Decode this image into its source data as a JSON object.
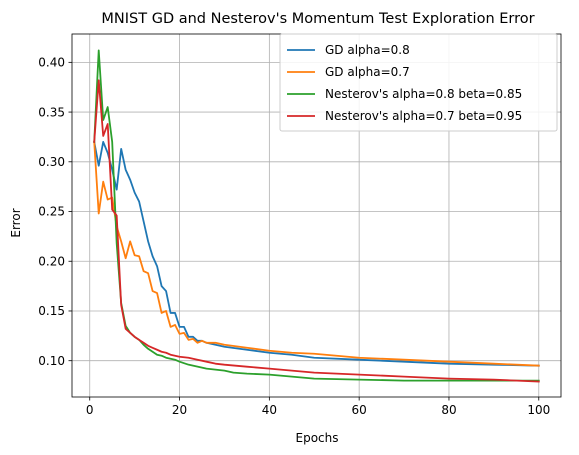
{
  "chart_data": {
    "type": "line",
    "title": "MNIST GD and Nesterov's Momentum Test Exploration Error",
    "xlabel": "Epochs",
    "ylabel": "Error",
    "xlim": [
      -3.95,
      104.95
    ],
    "ylim": [
      0.0635,
      0.4285
    ],
    "xticks": [
      0,
      20,
      40,
      60,
      80,
      100
    ],
    "yticks": [
      0.1,
      0.15,
      0.2,
      0.25,
      0.3,
      0.35,
      0.4
    ],
    "xtick_labels": [
      "0",
      "20",
      "40",
      "60",
      "80",
      "100"
    ],
    "ytick_labels": [
      "0.10",
      "0.15",
      "0.20",
      "0.25",
      "0.30",
      "0.35",
      "0.40"
    ],
    "grid": true,
    "legend_position": "top-right",
    "series": [
      {
        "name": "GD alpha=0.8",
        "color": "#1f77b4",
        "points": [
          [
            1,
            0.32
          ],
          [
            2,
            0.296
          ],
          [
            3,
            0.32
          ],
          [
            4,
            0.309
          ],
          [
            5,
            0.292
          ],
          [
            6,
            0.272
          ],
          [
            7,
            0.313
          ],
          [
            8,
            0.292
          ],
          [
            9,
            0.282
          ],
          [
            10,
            0.269
          ],
          [
            11,
            0.26
          ],
          [
            12,
            0.24
          ],
          [
            13,
            0.22
          ],
          [
            14,
            0.205
          ],
          [
            15,
            0.195
          ],
          [
            16,
            0.175
          ],
          [
            17,
            0.17
          ],
          [
            18,
            0.148
          ],
          [
            19,
            0.148
          ],
          [
            20,
            0.134
          ],
          [
            21,
            0.134
          ],
          [
            22,
            0.124
          ],
          [
            23,
            0.124
          ],
          [
            24,
            0.12
          ],
          [
            25,
            0.12
          ],
          [
            26,
            0.118
          ],
          [
            28,
            0.116
          ],
          [
            30,
            0.114
          ],
          [
            35,
            0.111
          ],
          [
            40,
            0.108
          ],
          [
            45,
            0.106
          ],
          [
            50,
            0.103
          ],
          [
            60,
            0.101
          ],
          [
            70,
            0.099
          ],
          [
            80,
            0.097
          ],
          [
            90,
            0.096
          ],
          [
            100,
            0.095
          ]
        ]
      },
      {
        "name": "GD alpha=0.7",
        "color": "#ff7f0e",
        "points": [
          [
            1,
            0.32
          ],
          [
            2,
            0.248
          ],
          [
            3,
            0.28
          ],
          [
            4,
            0.262
          ],
          [
            5,
            0.264
          ],
          [
            6,
            0.235
          ],
          [
            7,
            0.22
          ],
          [
            8,
            0.203
          ],
          [
            9,
            0.22
          ],
          [
            10,
            0.206
          ],
          [
            11,
            0.205
          ],
          [
            12,
            0.19
          ],
          [
            13,
            0.188
          ],
          [
            14,
            0.17
          ],
          [
            15,
            0.168
          ],
          [
            16,
            0.148
          ],
          [
            17,
            0.15
          ],
          [
            18,
            0.134
          ],
          [
            19,
            0.136
          ],
          [
            20,
            0.127
          ],
          [
            21,
            0.128
          ],
          [
            22,
            0.121
          ],
          [
            23,
            0.122
          ],
          [
            24,
            0.118
          ],
          [
            25,
            0.12
          ],
          [
            26,
            0.118
          ],
          [
            28,
            0.118
          ],
          [
            30,
            0.116
          ],
          [
            35,
            0.113
          ],
          [
            40,
            0.11
          ],
          [
            45,
            0.108
          ],
          [
            50,
            0.107
          ],
          [
            60,
            0.103
          ],
          [
            70,
            0.101
          ],
          [
            80,
            0.099
          ],
          [
            90,
            0.097
          ],
          [
            100,
            0.095
          ]
        ]
      },
      {
        "name": "Nesterov's alpha=0.8 beta=0.85",
        "color": "#2ca02c",
        "points": [
          [
            1,
            0.32
          ],
          [
            2,
            0.412
          ],
          [
            3,
            0.342
          ],
          [
            4,
            0.355
          ],
          [
            5,
            0.32
          ],
          [
            6,
            0.218
          ],
          [
            7,
            0.158
          ],
          [
            8,
            0.135
          ],
          [
            9,
            0.128
          ],
          [
            10,
            0.124
          ],
          [
            11,
            0.121
          ],
          [
            12,
            0.116
          ],
          [
            13,
            0.112
          ],
          [
            14,
            0.109
          ],
          [
            15,
            0.106
          ],
          [
            16,
            0.105
          ],
          [
            17,
            0.103
          ],
          [
            18,
            0.102
          ],
          [
            19,
            0.101
          ],
          [
            20,
            0.099
          ],
          [
            22,
            0.096
          ],
          [
            24,
            0.094
          ],
          [
            26,
            0.092
          ],
          [
            28,
            0.091
          ],
          [
            30,
            0.09
          ],
          [
            32,
            0.088
          ],
          [
            35,
            0.087
          ],
          [
            40,
            0.086
          ],
          [
            45,
            0.084
          ],
          [
            50,
            0.082
          ],
          [
            60,
            0.081
          ],
          [
            70,
            0.08
          ],
          [
            80,
            0.08
          ],
          [
            90,
            0.08
          ],
          [
            100,
            0.08
          ]
        ]
      },
      {
        "name": "Nesterov's alpha=0.7 beta=0.95",
        "color": "#d62728",
        "points": [
          [
            1,
            0.32
          ],
          [
            2,
            0.382
          ],
          [
            3,
            0.326
          ],
          [
            4,
            0.338
          ],
          [
            5,
            0.252
          ],
          [
            6,
            0.246
          ],
          [
            7,
            0.156
          ],
          [
            8,
            0.132
          ],
          [
            9,
            0.128
          ],
          [
            10,
            0.124
          ],
          [
            11,
            0.121
          ],
          [
            12,
            0.118
          ],
          [
            13,
            0.115
          ],
          [
            14,
            0.113
          ],
          [
            15,
            0.111
          ],
          [
            16,
            0.109
          ],
          [
            17,
            0.108
          ],
          [
            18,
            0.106
          ],
          [
            19,
            0.105
          ],
          [
            20,
            0.104
          ],
          [
            22,
            0.103
          ],
          [
            24,
            0.101
          ],
          [
            26,
            0.099
          ],
          [
            28,
            0.097
          ],
          [
            30,
            0.096
          ],
          [
            35,
            0.094
          ],
          [
            40,
            0.092
          ],
          [
            45,
            0.09
          ],
          [
            50,
            0.088
          ],
          [
            60,
            0.086
          ],
          [
            70,
            0.084
          ],
          [
            80,
            0.082
          ],
          [
            90,
            0.081
          ],
          [
            100,
            0.079
          ]
        ]
      }
    ]
  }
}
